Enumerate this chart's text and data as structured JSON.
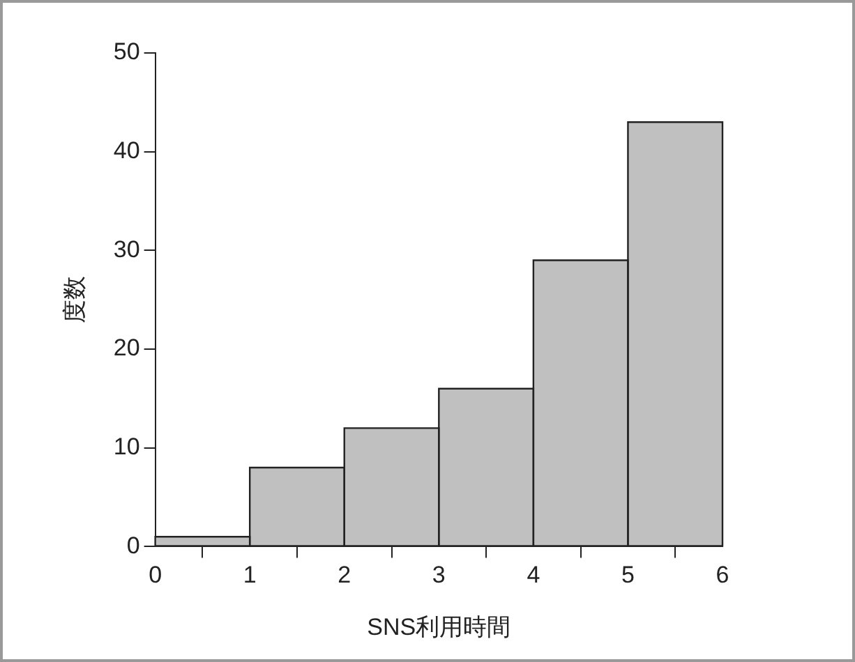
{
  "chart_data": {
    "type": "histogram",
    "xlabel": "SNS利用時間",
    "ylabel": "度数",
    "bins": [
      0,
      1,
      2,
      3,
      4,
      5,
      6
    ],
    "values": [
      1,
      8,
      12,
      16,
      29,
      43
    ],
    "color": "#c0c0c0",
    "xlim": [
      0,
      6
    ],
    "xticks": [
      0,
      1,
      2,
      3,
      4,
      5,
      6
    ],
    "ylim": [
      0,
      50
    ],
    "yticks": [
      0,
      10,
      20,
      30,
      40,
      50
    ],
    "grid": false,
    "legend": false
  }
}
